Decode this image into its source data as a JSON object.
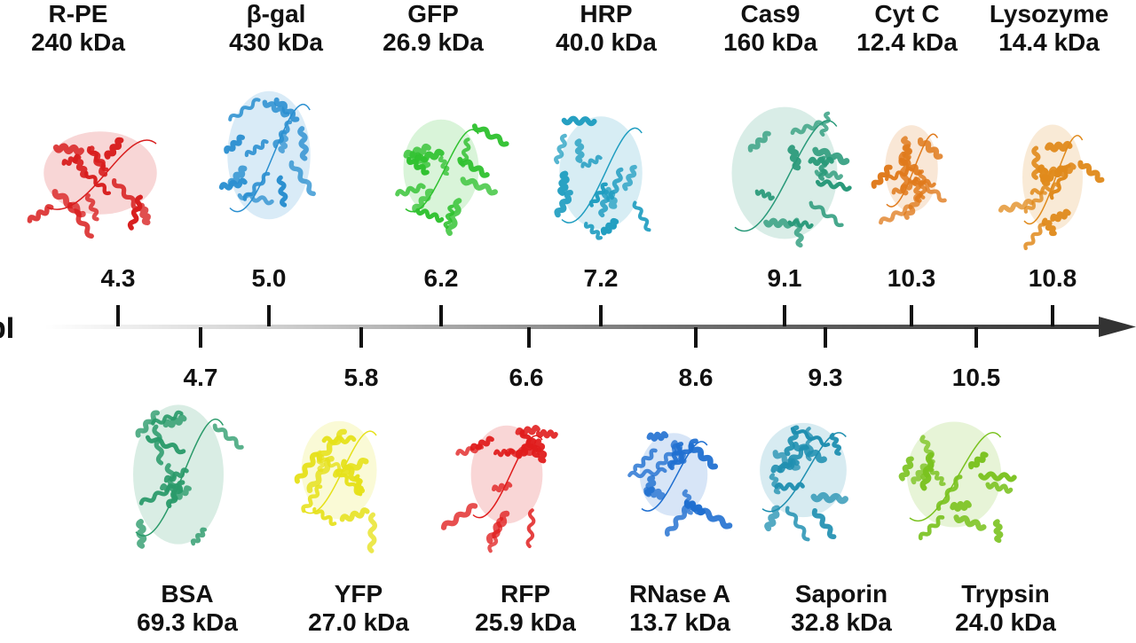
{
  "axis_label": "pI",
  "top_row": [
    {
      "name": "R-PE",
      "mass": "240 kDa",
      "pi": "4.3",
      "pi_value": 4.3,
      "icon": "protein-rpe-structure-icon",
      "color": "#d81e1e"
    },
    {
      "name": "β-gal",
      "mass": "430 kDa",
      "pi": "5.0",
      "pi_value": 5.0,
      "icon": "protein-bgal-structure-icon",
      "color": "#2a8fd0"
    },
    {
      "name": "GFP",
      "mass": "26.9 kDa",
      "pi": "6.2",
      "pi_value": 6.2,
      "icon": "protein-gfp-structure-icon",
      "color": "#2fc12f"
    },
    {
      "name": "HRP",
      "mass": "40.0 kDa",
      "pi": "7.2",
      "pi_value": 7.2,
      "icon": "protein-hrp-structure-icon",
      "color": "#1f9dc0"
    },
    {
      "name": "Cas9",
      "mass": "160 kDa",
      "pi": "9.1",
      "pi_value": 9.1,
      "icon": "protein-cas9-structure-icon",
      "color": "#2a9a7a"
    },
    {
      "name": "Cyt C",
      "mass": "12.4 kDa",
      "pi": "10.3",
      "pi_value": 10.3,
      "icon": "protein-cytc-structure-icon",
      "color": "#e07a1c"
    },
    {
      "name": "Lysozyme",
      "mass": "14.4 kDa",
      "pi": "10.8",
      "pi_value": 10.8,
      "icon": "protein-lysozyme-structure-icon",
      "color": "#e08a1c"
    }
  ],
  "bottom_row": [
    {
      "name": "BSA",
      "mass": "69.3 kDa",
      "pi": "4.7",
      "pi_value": 4.7,
      "icon": "protein-bsa-structure-icon",
      "color": "#2a9a6a"
    },
    {
      "name": "YFP",
      "mass": "27.0 kDa",
      "pi": "5.8",
      "pi_value": 5.8,
      "icon": "protein-yfp-structure-icon",
      "color": "#e6e11a"
    },
    {
      "name": "RFP",
      "mass": "25.9 kDa",
      "pi": "6.6",
      "pi_value": 6.6,
      "icon": "protein-rfp-structure-icon",
      "color": "#e01c1c"
    },
    {
      "name": "RNase A",
      "mass": "13.7 kDa",
      "pi": "8.6",
      "pi_value": 8.6,
      "icon": "protein-rnasea-structure-icon",
      "color": "#1f6fd0"
    },
    {
      "name": "Saporin",
      "mass": "32.8 kDa",
      "pi": "9.3",
      "pi_value": 9.3,
      "icon": "protein-saporin-structure-icon",
      "color": "#1f8fb0"
    },
    {
      "name": "Trypsin",
      "mass": "24.0 kDa",
      "pi": "10.5",
      "pi_value": 10.5,
      "icon": "protein-trypsin-structure-icon",
      "color": "#7ac21f"
    }
  ]
}
